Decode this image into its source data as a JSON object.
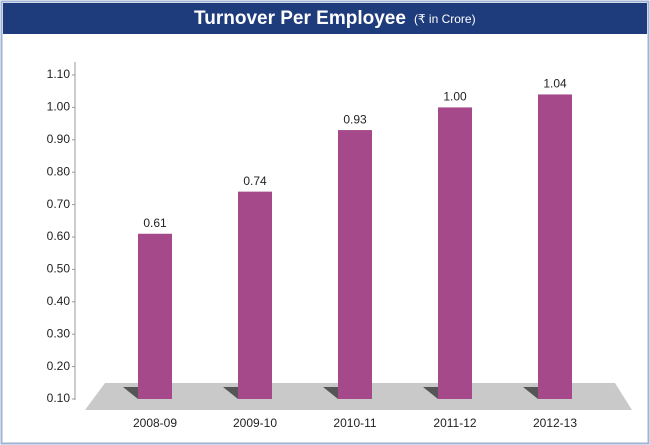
{
  "chart_data": {
    "type": "bar",
    "title": "Turnover Per Employee",
    "subtitle": "(₹ in Crore)",
    "categories": [
      "2008-09",
      "2009-10",
      "2010-11",
      "2011-12",
      "2012-13"
    ],
    "values": [
      0.61,
      0.74,
      0.93,
      1.0,
      1.04
    ],
    "value_labels": [
      "0.61",
      "0.74",
      "0.93",
      "1.00",
      "1.04"
    ],
    "color": "#a5498a",
    "ylim": [
      0.1,
      1.1
    ],
    "yticks": [
      {
        "value": 0.1,
        "label": "0.10"
      },
      {
        "value": 0.2,
        "label": "0.20"
      },
      {
        "value": 0.3,
        "label": "0.30"
      },
      {
        "value": 0.4,
        "label": "0.40"
      },
      {
        "value": 0.5,
        "label": "0.50"
      },
      {
        "value": 0.6,
        "label": "0.60"
      },
      {
        "value": 0.7,
        "label": "0.70"
      },
      {
        "value": 0.8,
        "label": "0.80"
      },
      {
        "value": 0.9,
        "label": "0.90"
      },
      {
        "value": 1.0,
        "label": "1.00"
      },
      {
        "value": 1.1,
        "label": "1.10"
      }
    ],
    "grid": false
  }
}
